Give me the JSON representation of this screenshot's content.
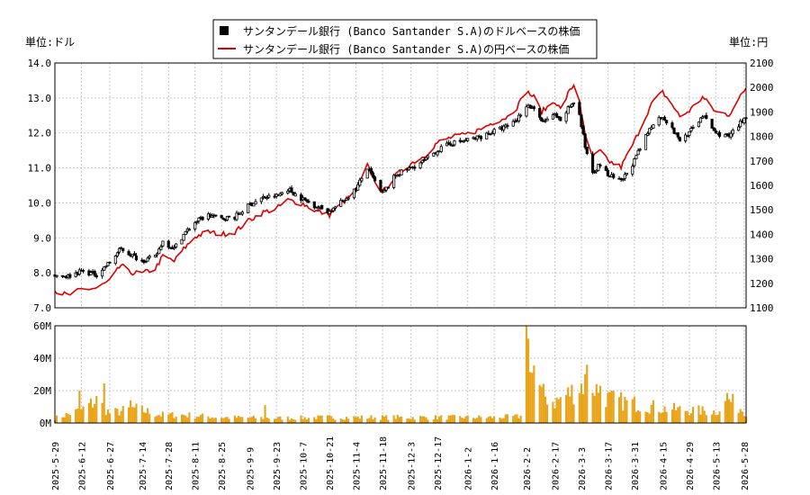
{
  "chart_data": {
    "type": "candlestick+line+bar",
    "legend": {
      "placement": "top-center",
      "items": [
        {
          "label": "サンタンデール銀行 (Banco Santander S.A)のドルベースの株価",
          "color": "#000000",
          "marker": "square"
        },
        {
          "label": "サンタンデール銀行 (Banco Santander S.A)の円ベースの株価",
          "color": "#dd0000",
          "marker": "line"
        }
      ]
    },
    "left_axis": {
      "unit_label": "単位:ドル",
      "ylim": [
        7.0,
        14.0
      ],
      "ticks": [
        "7.0",
        "8.0",
        "9.0",
        "10.0",
        "11.0",
        "12.0",
        "13.0",
        "14.0"
      ]
    },
    "right_axis": {
      "unit_label": "単位:円",
      "ylim": [
        1100,
        2100
      ],
      "ticks": [
        "1100",
        "1200",
        "1300",
        "1400",
        "1500",
        "1600",
        "1700",
        "1800",
        "1900",
        "2000",
        "2100"
      ]
    },
    "volume_axis": {
      "ylim": [
        0,
        60000000
      ],
      "ticks": [
        "0M",
        "20M",
        "40M",
        "60M"
      ],
      "tick_values": [
        0,
        20000000,
        40000000,
        60000000
      ]
    },
    "grid": true,
    "x_start": "2025-05-29",
    "x_end": "2026-05-29",
    "x_ticks": [
      "2025-5-29",
      "2025-6-12",
      "2025-6-27",
      "2025-7-14",
      "2025-7-28",
      "2025-8-11",
      "2025-8-25",
      "2025-9-9",
      "2025-9-23",
      "2025-10-7",
      "2025-10-21",
      "2025-11-4",
      "2025-11-18",
      "2025-12-3",
      "2025-12-17",
      "2026-1-2",
      "2026-1-16",
      "2026-2-2",
      "2026-2-17",
      "2026-3-3",
      "2026-3-17",
      "2026-3-31",
      "2026-4-15",
      "2026-4-29",
      "2026-5-13",
      "2026-5-28"
    ],
    "usd_anchors": [
      [
        "2025-05-29",
        7.95
      ],
      [
        "2025-06-05",
        7.9
      ],
      [
        "2025-06-12",
        8.05
      ],
      [
        "2025-06-20",
        7.95
      ],
      [
        "2025-06-27",
        8.3
      ],
      [
        "2025-07-03",
        8.7
      ],
      [
        "2025-07-07",
        8.55
      ],
      [
        "2025-07-14",
        8.35
      ],
      [
        "2025-07-21",
        8.45
      ],
      [
        "2025-07-25",
        8.9
      ],
      [
        "2025-07-31",
        8.7
      ],
      [
        "2025-08-05",
        9.1
      ],
      [
        "2025-08-11",
        9.45
      ],
      [
        "2025-08-18",
        9.65
      ],
      [
        "2025-08-25",
        9.55
      ],
      [
        "2025-09-01",
        9.6
      ],
      [
        "2025-09-09",
        9.95
      ],
      [
        "2025-09-16",
        10.15
      ],
      [
        "2025-09-23",
        10.2
      ],
      [
        "2025-09-29",
        10.4
      ],
      [
        "2025-10-07",
        10.1
      ],
      [
        "2025-10-14",
        9.9
      ],
      [
        "2025-10-21",
        9.75
      ],
      [
        "2025-10-28",
        10.05
      ],
      [
        "2025-11-04",
        10.4
      ],
      [
        "2025-11-10",
        11.0
      ],
      [
        "2025-11-14",
        10.6
      ],
      [
        "2025-11-18",
        10.25
      ],
      [
        "2025-11-25",
        10.8
      ],
      [
        "2025-12-03",
        11.0
      ],
      [
        "2025-12-10",
        11.2
      ],
      [
        "2025-12-17",
        11.5
      ],
      [
        "2025-12-24",
        11.7
      ],
      [
        "2026-01-02",
        11.8
      ],
      [
        "2026-01-09",
        11.9
      ],
      [
        "2026-01-16",
        12.05
      ],
      [
        "2026-01-23",
        12.2
      ],
      [
        "2026-01-28",
        12.4
      ],
      [
        "2026-02-02",
        12.8
      ],
      [
        "2026-02-06",
        12.7
      ],
      [
        "2026-02-10",
        12.3
      ],
      [
        "2026-02-17",
        12.5
      ],
      [
        "2026-02-20",
        12.3
      ],
      [
        "2026-02-24",
        12.7
      ],
      [
        "2026-02-27",
        12.9
      ],
      [
        "2026-03-02",
        12.5
      ],
      [
        "2026-03-05",
        11.6
      ],
      [
        "2026-03-09",
        10.9
      ],
      [
        "2026-03-13",
        11.1
      ],
      [
        "2026-03-17",
        10.8
      ],
      [
        "2026-03-24",
        10.6
      ],
      [
        "2026-03-31",
        11.2
      ],
      [
        "2026-04-07",
        12.0
      ],
      [
        "2026-04-10",
        12.3
      ],
      [
        "2026-04-15",
        12.5
      ],
      [
        "2026-04-20",
        12.1
      ],
      [
        "2026-04-24",
        11.8
      ],
      [
        "2026-04-29",
        12.0
      ],
      [
        "2026-05-06",
        12.5
      ],
      [
        "2026-05-13",
        12.0
      ],
      [
        "2026-05-20",
        11.9
      ],
      [
        "2026-05-25",
        12.2
      ],
      [
        "2026-05-29",
        12.5
      ]
    ],
    "jpy_anchors": [
      [
        "2025-05-29",
        1170
      ],
      [
        "2025-06-05",
        1150
      ],
      [
        "2025-06-12",
        1175
      ],
      [
        "2025-06-20",
        1180
      ],
      [
        "2025-06-27",
        1210
      ],
      [
        "2025-07-03",
        1275
      ],
      [
        "2025-07-07",
        1245
      ],
      [
        "2025-07-14",
        1240
      ],
      [
        "2025-07-21",
        1260
      ],
      [
        "2025-07-25",
        1310
      ],
      [
        "2025-07-31",
        1290
      ],
      [
        "2025-08-05",
        1340
      ],
      [
        "2025-08-11",
        1390
      ],
      [
        "2025-08-18",
        1410
      ],
      [
        "2025-08-25",
        1400
      ],
      [
        "2025-09-01",
        1410
      ],
      [
        "2025-09-09",
        1460
      ],
      [
        "2025-09-16",
        1490
      ],
      [
        "2025-09-23",
        1505
      ],
      [
        "2025-09-29",
        1540
      ],
      [
        "2025-10-07",
        1525
      ],
      [
        "2025-10-14",
        1495
      ],
      [
        "2025-10-21",
        1480
      ],
      [
        "2025-10-28",
        1530
      ],
      [
        "2025-11-04",
        1575
      ],
      [
        "2025-11-10",
        1680
      ],
      [
        "2025-11-14",
        1620
      ],
      [
        "2025-11-18",
        1570
      ],
      [
        "2025-11-25",
        1640
      ],
      [
        "2025-12-03",
        1690
      ],
      [
        "2025-12-10",
        1720
      ],
      [
        "2025-12-17",
        1775
      ],
      [
        "2025-12-24",
        1795
      ],
      [
        "2026-01-02",
        1810
      ],
      [
        "2026-01-09",
        1830
      ],
      [
        "2026-01-16",
        1860
      ],
      [
        "2026-01-23",
        1880
      ],
      [
        "2026-01-28",
        1920
      ],
      [
        "2026-02-02",
        1985
      ],
      [
        "2026-02-06",
        1960
      ],
      [
        "2026-02-10",
        1900
      ],
      [
        "2026-02-17",
        1945
      ],
      [
        "2026-02-20",
        1910
      ],
      [
        "2026-02-24",
        1975
      ],
      [
        "2026-02-27",
        2010
      ],
      [
        "2026-03-02",
        1950
      ],
      [
        "2026-03-05",
        1800
      ],
      [
        "2026-03-09",
        1715
      ],
      [
        "2026-03-13",
        1740
      ],
      [
        "2026-03-17",
        1700
      ],
      [
        "2026-03-24",
        1675
      ],
      [
        "2026-03-31",
        1780
      ],
      [
        "2026-04-07",
        1900
      ],
      [
        "2026-04-10",
        1945
      ],
      [
        "2026-04-15",
        1980
      ],
      [
        "2026-04-20",
        1930
      ],
      [
        "2026-04-24",
        1880
      ],
      [
        "2026-04-29",
        1905
      ],
      [
        "2026-05-06",
        1960
      ],
      [
        "2026-05-13",
        1900
      ],
      [
        "2026-05-20",
        1890
      ],
      [
        "2026-05-25",
        1950
      ],
      [
        "2026-05-29",
        2000
      ]
    ],
    "volume_anchors": [
      [
        "2025-05-29",
        3000000
      ],
      [
        "2025-06-12",
        8000000
      ],
      [
        "2025-06-20",
        14000000
      ],
      [
        "2025-06-27",
        6000000
      ],
      [
        "2025-07-10",
        9000000
      ],
      [
        "2025-07-24",
        5000000
      ],
      [
        "2025-08-05",
        5000000
      ],
      [
        "2025-08-25",
        3500000
      ],
      [
        "2025-09-23",
        3000000
      ],
      [
        "2025-10-21",
        3500000
      ],
      [
        "2025-11-18",
        3500000
      ],
      [
        "2025-12-17",
        3500000
      ],
      [
        "2026-01-16",
        3500000
      ],
      [
        "2026-01-30",
        4000000
      ],
      [
        "2026-02-02",
        60000000
      ],
      [
        "2026-02-05",
        40000000
      ],
      [
        "2026-02-10",
        18000000
      ],
      [
        "2026-02-17",
        13000000
      ],
      [
        "2026-02-27",
        20000000
      ],
      [
        "2026-03-06",
        26000000
      ],
      [
        "2026-03-17",
        15000000
      ],
      [
        "2026-03-31",
        12000000
      ],
      [
        "2026-04-15",
        9000000
      ],
      [
        "2026-04-29",
        8000000
      ],
      [
        "2026-05-13",
        7000000
      ],
      [
        "2026-05-20",
        14000000
      ],
      [
        "2026-05-29",
        7000000
      ]
    ],
    "volume_spikes": [
      [
        "2025-06-11",
        20000000
      ],
      [
        "2025-06-24",
        24500000
      ],
      [
        "2025-07-08",
        14000000
      ],
      [
        "2025-09-17",
        11000000
      ],
      [
        "2026-02-02",
        60000000
      ],
      [
        "2026-02-03",
        52000000
      ],
      [
        "2026-02-05",
        31000000
      ],
      [
        "2026-03-06",
        36000000
      ],
      [
        "2026-03-13",
        23000000
      ],
      [
        "2026-05-19",
        18500000
      ]
    ],
    "colors": {
      "usd": "#000000",
      "jpy": "#dd0000",
      "volume": "#e8a317",
      "grid": "#c8c8c8"
    }
  }
}
